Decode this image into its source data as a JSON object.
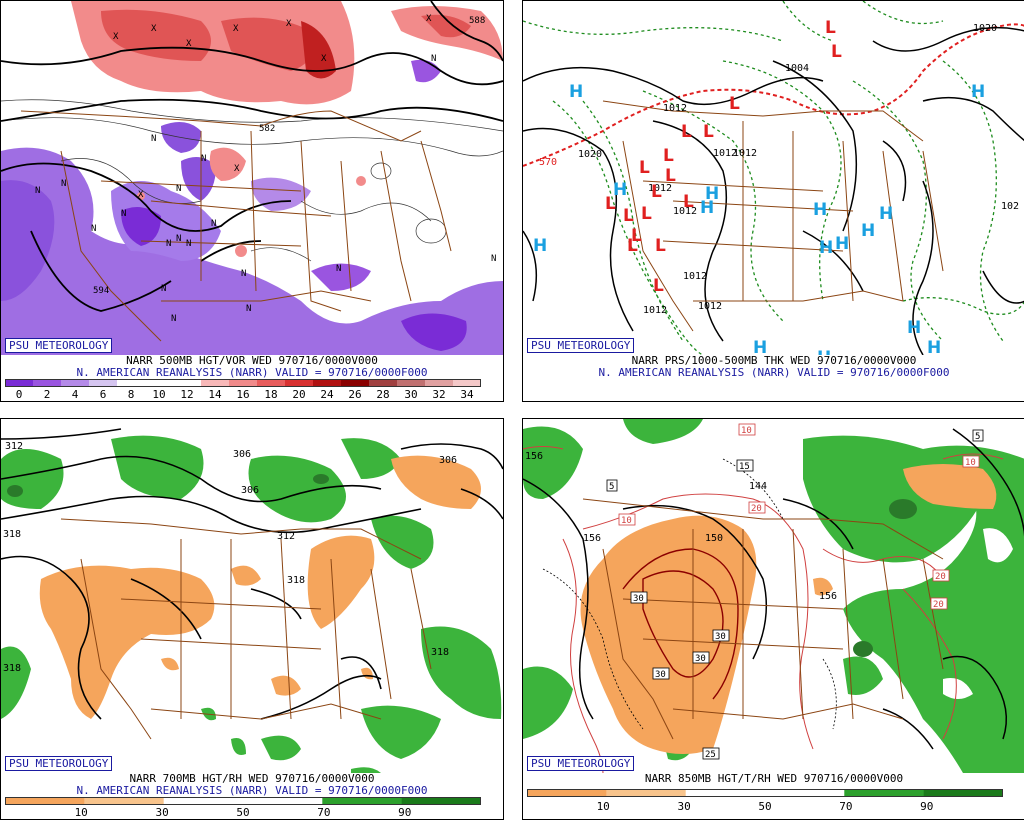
{
  "branding": "PSU METEOROLOGY",
  "reanalysis_caption": "N. AMERICAN REANALYSIS (NARR) VALID = 970716/0000F000",
  "panels": {
    "vor500": {
      "title": "NARR 500MB HGT/VOR WED 970716/0000V000",
      "colorbar": {
        "ticks": [
          "0",
          "2",
          "4",
          "6",
          "8",
          "10",
          "12",
          "14",
          "16",
          "18",
          "20",
          "24",
          "26",
          "28",
          "30",
          "32",
          "34"
        ],
        "colors": [
          "#7a2cd6",
          "#9a55e0",
          "#b48ae8",
          "#d5c5f0",
          "#ffffff",
          "#ffffff",
          "#ffffff",
          "#f8b8b8",
          "#f08a8a",
          "#e85c5c",
          "#d83030",
          "#b01010",
          "#8a0000",
          "#a04040",
          "#c07070",
          "#e0a0a0",
          "#f4c8c8"
        ]
      },
      "contour_labels": [
        "582",
        "588",
        "588",
        "588",
        "588",
        "588",
        "588",
        "588",
        "588",
        "594"
      ],
      "n_markers": [
        "N",
        "N",
        "N",
        "N",
        "N",
        "N",
        "N",
        "N",
        "N",
        "N",
        "N",
        "N",
        "N",
        "N",
        "N",
        "N",
        "N",
        "N"
      ],
      "x_markers": [
        "X",
        "X",
        "X",
        "X",
        "X",
        "X",
        "X",
        "X",
        "X"
      ]
    },
    "prs": {
      "title": "NARR PRS/1000-500MB THK WED 970716/0000V000",
      "contour_labels": [
        "1004",
        "1012",
        "1012",
        "1012",
        "1012",
        "1012",
        "1012",
        "1012",
        "1012",
        "1020",
        "1020",
        "102",
        "570"
      ],
      "h_markers": [
        "H",
        "H",
        "H",
        "H",
        "H",
        "H",
        "H",
        "H",
        "H",
        "H",
        "H",
        "H",
        "H",
        "H",
        "H"
      ],
      "l_markers": [
        "L",
        "L",
        "L",
        "L",
        "L",
        "L",
        "L",
        "L",
        "L",
        "L",
        "L",
        "L",
        "L",
        "L",
        "L",
        "L",
        "L"
      ]
    },
    "rh700": {
      "title": "NARR 700MB HGT/RH WED 970716/0000V000",
      "contour_labels": [
        "312",
        "306",
        "306",
        "306",
        "312",
        "318",
        "318",
        "318",
        "318"
      ],
      "colorbar": {
        "ticks": [
          "10",
          "30",
          "50",
          "70",
          "90"
        ],
        "colors": [
          "#f5a55c",
          "#f8c48c",
          "#ffffff",
          "#ffffff",
          "#2ca02c",
          "#1a7a1a"
        ]
      }
    },
    "t850": {
      "title": "NARR 850MB HGT/T/RH WED 970716/0000V000",
      "contour_labels": [
        "156",
        "156",
        "150",
        "144",
        "156"
      ],
      "temp_boxes": [
        "5",
        "5",
        "10",
        "10",
        "10",
        "15",
        "20",
        "20",
        "20",
        "25",
        "30",
        "30",
        "30",
        "30"
      ],
      "colorbar": {
        "ticks": [
          "10",
          "30",
          "50",
          "70",
          "90"
        ],
        "colors": [
          "#f5a55c",
          "#f8c48c",
          "#ffffff",
          "#ffffff",
          "#2ca02c",
          "#1a7a1a"
        ]
      }
    }
  }
}
